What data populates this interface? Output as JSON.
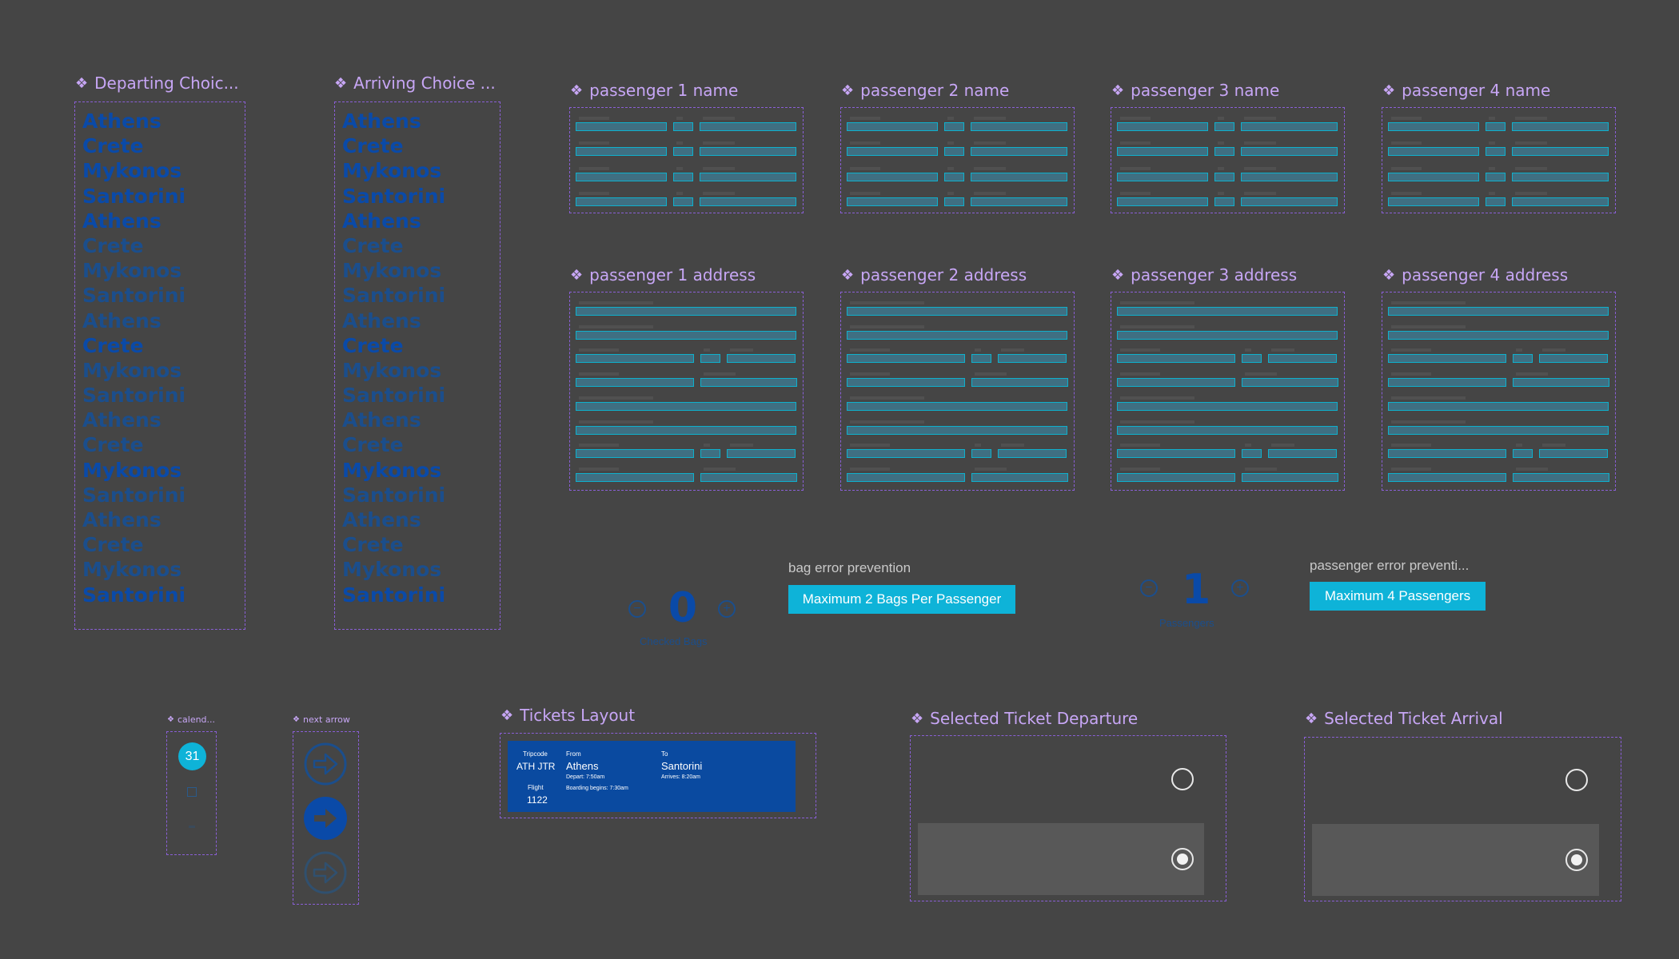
{
  "components": {
    "departing_choice": "Departing Choic...",
    "arriving_choice": "Arriving Choice ...",
    "passenger_names": [
      "passenger 1 name",
      "passenger 2 name",
      "passenger 3 name",
      "passenger 4 name"
    ],
    "passenger_addresses": [
      "passenger 1 address",
      "passenger 2 address",
      "passenger 3 address",
      "passenger 4 address"
    ],
    "calendar": "calend...",
    "next_arrow": "next arrow",
    "tickets_layout": "Tickets Layout",
    "selected_departure": "Selected Ticket Departure",
    "selected_arrival": "Selected Ticket Arrival"
  },
  "cities": [
    "Athens",
    "Crete",
    "Mykonos",
    "Santorini",
    "Athens",
    "Crete",
    "Mykonos",
    "Santorini",
    "Athens",
    "Crete",
    "Mykonos",
    "Santorini",
    "Athens",
    "Crete",
    "Mykonos",
    "Santorini",
    "Athens",
    "Crete",
    "Mykonos",
    "Santorini"
  ],
  "bags": {
    "value": "0",
    "caption": "Checked Bags",
    "minus_icon": "minus-circle-icon",
    "plus_icon": "plus-circle-icon"
  },
  "passengers": {
    "value": "1",
    "caption": "Passengers"
  },
  "bag_error": {
    "title": "bag error prevention",
    "button": "Maximum 2 Bags Per Passenger"
  },
  "passenger_error": {
    "title": "passenger error preventi...",
    "button": "Maximum 4 Passengers"
  },
  "calendar": {
    "day": "31"
  },
  "ticket": {
    "tripcode_label": "Tripcode",
    "tripcode": "ATH JTR",
    "flight_label": "Flight",
    "flight": "1122",
    "from_label": "From",
    "from": "Athens",
    "depart": "Depart: 7:50am",
    "boarding": "Boarding begins: 7:30am",
    "to_label": "To",
    "to": "Santorini",
    "arrives": "Arrives: 8:20am"
  },
  "colors": {
    "background": "#454545",
    "component_label": "#c7a6f5",
    "accent": "#0eb3d8",
    "ticket": "#0a4aa0"
  }
}
